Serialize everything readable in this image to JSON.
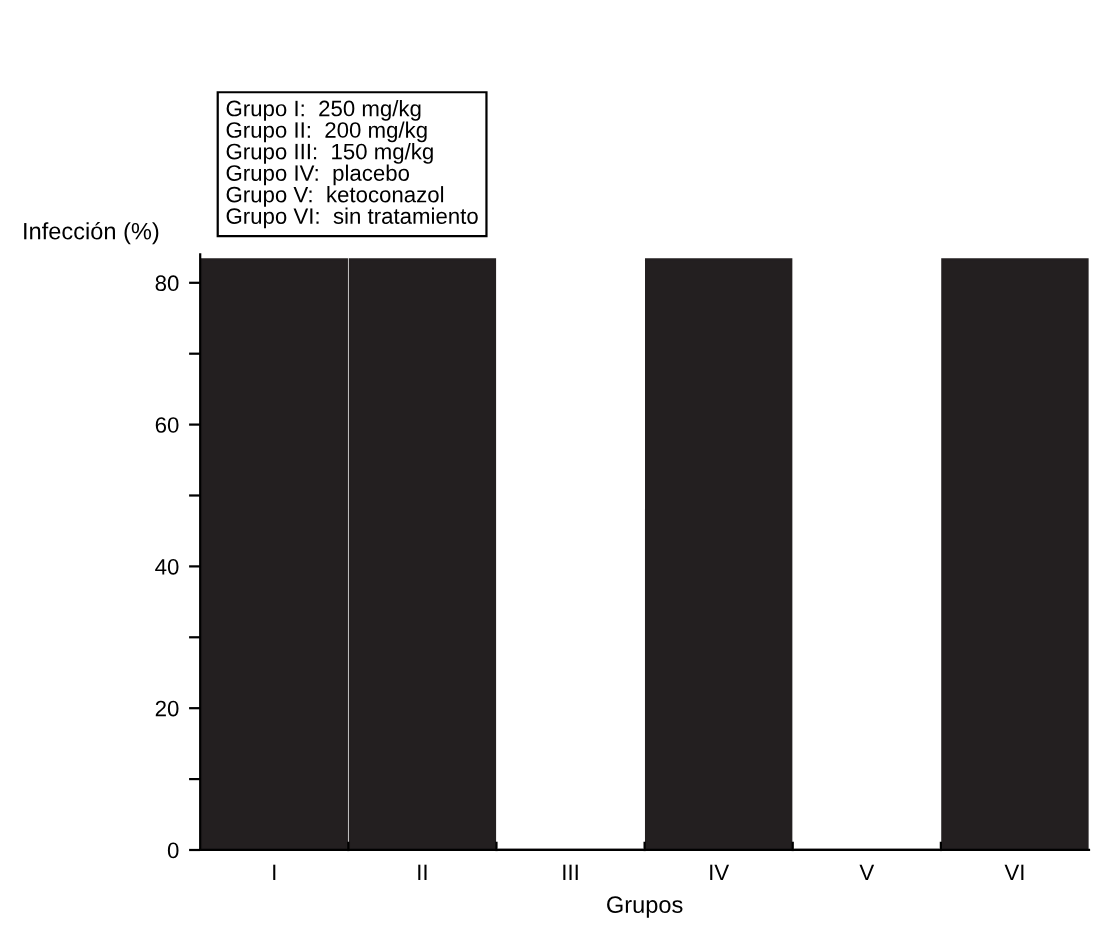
{
  "chart_data": {
    "type": "bar",
    "xlabel": "Grupos",
    "ylabel": "Infección (%)",
    "categories": [
      "I",
      "II",
      "III",
      "IV",
      "V",
      "VI"
    ],
    "values": [
      83.3,
      83.3,
      0,
      83.3,
      0,
      83.3
    ],
    "color": "#231f20",
    "ylim": [
      0,
      84
    ],
    "yticks": [
      0,
      {
        "value": 10,
        "label": null
      },
      20,
      {
        "value": 30,
        "label": null
      },
      40,
      {
        "value": 50,
        "label": null
      },
      60,
      {
        "value": 70,
        "label": null
      },
      80
    ],
    "grid": false,
    "legend": false,
    "annotations": [
      "Grupo I:  250 mg/kg\nGrupo II:  200 mg/kg\nGrupo III:  150 mg/kg\nGrupo IV:  placebo\nGrupo V:  ketoconazol\nGrupo VI:  sin tratamiento"
    ]
  }
}
